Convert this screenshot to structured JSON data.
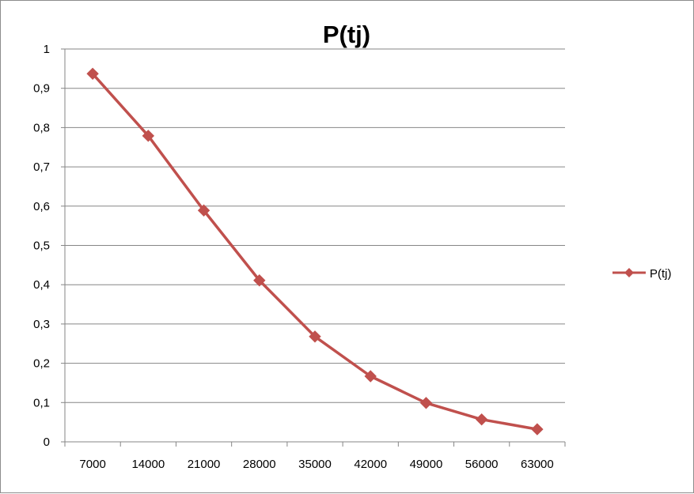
{
  "chart_data": {
    "type": "line",
    "title": "P(tj)",
    "xlabel": "",
    "ylabel": "",
    "categories": [
      "7000",
      "14000",
      "21000",
      "28000",
      "35000",
      "42000",
      "49000",
      "56000",
      "63000"
    ],
    "series": [
      {
        "name": "P(tj)",
        "values": [
          0.937,
          0.779,
          0.589,
          0.411,
          0.268,
          0.167,
          0.099,
          0.057,
          0.032
        ],
        "color": "#c0504d",
        "marker": "diamond"
      }
    ],
    "ylim": [
      0,
      1
    ],
    "yticks": [
      0,
      0.1,
      0.2,
      0.3,
      0.4,
      0.5,
      0.6,
      0.7,
      0.8,
      0.9,
      1
    ],
    "ytick_labels": [
      "0",
      "0,1",
      "0,2",
      "0,3",
      "0,4",
      "0,5",
      "0,6",
      "0,7",
      "0,8",
      "0,9",
      "1"
    ],
    "grid": "horizontal",
    "legend": "right"
  }
}
